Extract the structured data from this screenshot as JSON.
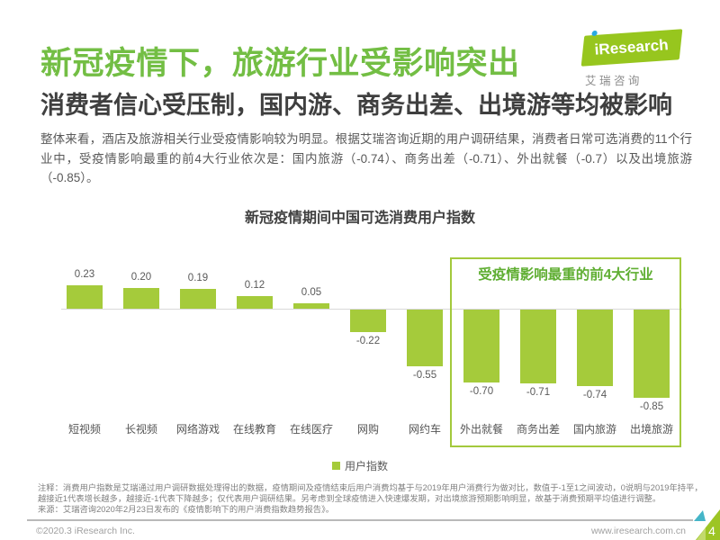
{
  "header": {
    "title": "新冠疫情下，旅游行业受影响突出",
    "subtitle": "消费者信心受压制，国内游、商务出差、出境游等均被影响",
    "logo": {
      "brand": "iResearch",
      "brand_cn": "艾 瑞 咨 询"
    }
  },
  "intro": "整体来看，酒店及旅游相关行业受疫情影响较为明显。根据艾瑞咨询近期的用户调研结果，消费者日常可选消费的11个行业中，受疫情影响最重的前4大行业依次是：国内旅游（-0.74）、商务出差（-0.71）、外出就餐（-0.7）以及出境旅游（-0.85）。",
  "chart_data": {
    "type": "bar",
    "title": "新冠疫情期间中国可选消费用户指数",
    "categories": [
      "短视频",
      "长视频",
      "网络游戏",
      "在线教育",
      "在线医疗",
      "网购",
      "网约车",
      "外出就餐",
      "商务出差",
      "国内旅游",
      "出境旅游"
    ],
    "values": [
      0.23,
      0.2,
      0.19,
      0.12,
      0.05,
      -0.22,
      -0.55,
      -0.7,
      -0.71,
      -0.74,
      -0.85
    ],
    "legend_label": "用户指数",
    "legend_position": "bottom",
    "grid": false,
    "ylim": [
      -1,
      0.3
    ],
    "bar_color": "#A5CB3B",
    "highlight": {
      "label": "受疫情影响最重的前4大行业",
      "categories": [
        "外出就餐",
        "商务出差",
        "国内旅游",
        "出境旅游"
      ]
    }
  },
  "notes": {
    "lines": [
      "注释：消费用户指数是艾瑞通过用户调研数据处理得出的数据，疫情期间及疫情结束后用户消费均基于与2019年用户消费行为做对比，数值于-1至1之间波动，0说明与2019年持平，",
      "越接近1代表增长越多，越接近-1代表下降越多；仅代表用户调研结果。另考虑到全球疫情进入快速爆发期，对出境旅游预期影响明显，故基于消费预期平均值进行调整。",
      "来源：艾瑞咨询2020年2月23日发布的《疫情影响下的用户消费指数趋势报告》。"
    ]
  },
  "footer": {
    "copyright": "©2020.3 iResearch Inc.",
    "website": "www.iresearch.com.cn",
    "page_number": "4"
  },
  "colors": {
    "title_green": "#73BE44",
    "bar_green": "#A5CB3B",
    "box_border_green": "#A3C93C",
    "box_title_green": "#5FAE32",
    "logo_green": "#97C61E",
    "logo_dot_blue": "#29A9E1",
    "corner_teal": "#45B5C8"
  }
}
